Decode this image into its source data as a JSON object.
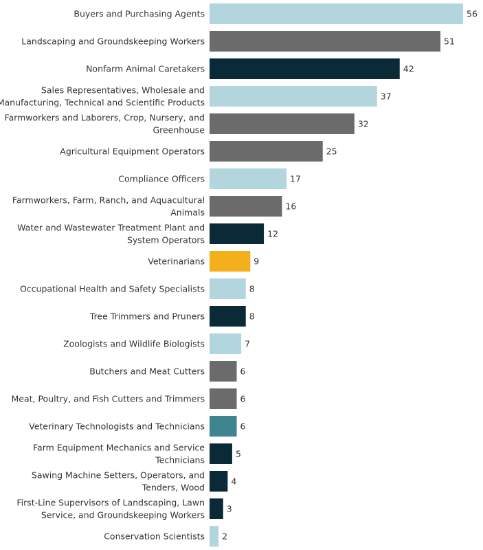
{
  "chart_data": {
    "type": "bar",
    "orientation": "horizontal",
    "grid": false,
    "categories": [
      [
        "Buyers and Purchasing Agents"
      ],
      [
        "Landscaping and Groundskeeping Workers"
      ],
      [
        "Nonfarm Animal Caretakers"
      ],
      [
        "Sales Representatives, Wholesale and",
        "Manufacturing, Technical and Scientific Products"
      ],
      [
        "Farmworkers and Laborers, Crop, Nursery, and",
        "Greenhouse"
      ],
      [
        "Agricultural Equipment Operators"
      ],
      [
        "Compliance Officers"
      ],
      [
        "Farmworkers, Farm, Ranch, and Aquacultural",
        "Animals"
      ],
      [
        "Water and Wastewater Treatment Plant and",
        "System Operators"
      ],
      [
        "Veterinarians"
      ],
      [
        "Occupational Health and Safety Specialists"
      ],
      [
        "Tree Trimmers and Pruners"
      ],
      [
        "Zoologists and Wildlife Biologists"
      ],
      [
        "Butchers and Meat Cutters"
      ],
      [
        "Meat, Poultry, and Fish Cutters and Trimmers"
      ],
      [
        "Veterinary Technologists and Technicians"
      ],
      [
        "Farm Equipment Mechanics and Service",
        "Technicians"
      ],
      [
        "Sawing Machine Setters, Operators, and",
        "Tenders, Wood"
      ],
      [
        "First-Line Supervisors of Landscaping, Lawn",
        "Service, and Groundskeeping Workers"
      ],
      [
        "Conservation Scientists"
      ]
    ],
    "values": [
      56,
      51,
      42,
      37,
      32,
      25,
      17,
      16,
      12,
      9,
      8,
      8,
      7,
      6,
      6,
      6,
      5,
      4,
      3,
      2
    ],
    "colors": [
      "#b3d5de",
      "#6b6b6b",
      "#0b2a38",
      "#b3d5de",
      "#6b6b6b",
      "#6b6b6b",
      "#b3d5de",
      "#6b6b6b",
      "#0b2a38",
      "#f3b01c",
      "#b3d5de",
      "#0b2a38",
      "#b3d5de",
      "#6b6b6b",
      "#6b6b6b",
      "#3e8590",
      "#0b2a38",
      "#0b2a38",
      "#0b2a38",
      "#b3d5de"
    ],
    "xlim": [
      0,
      56
    ]
  }
}
